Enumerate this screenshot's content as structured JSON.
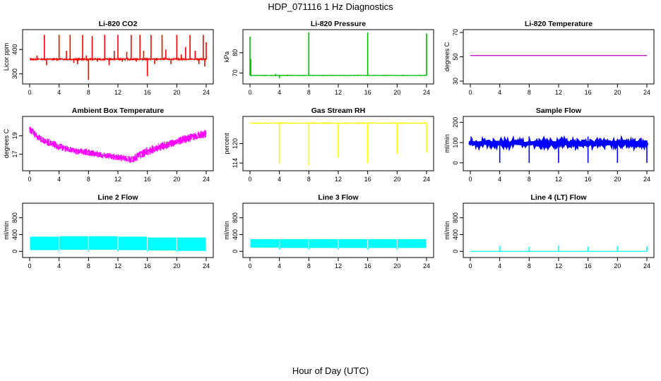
{
  "figure": {
    "title": "HDP_071116  1 Hz Diagnostics",
    "xlabel": "Hour of Day (UTC)"
  },
  "chart_data": [
    {
      "type": "line",
      "title": "Li-820 CO2",
      "ylabel": "Licor ppm",
      "xlim": [
        0,
        24
      ],
      "ylim": [
        270,
        470
      ],
      "xticks": [
        0,
        4,
        8,
        12,
        16,
        20,
        24
      ],
      "xtick_labels": [
        "0",
        "4",
        "8",
        "12",
        "16",
        "20",
        "24"
      ],
      "yticks": [
        300,
        400
      ],
      "ytick_labels": [
        "300",
        "400"
      ],
      "color": "#ff0000",
      "series": [
        {
          "name": "CO2",
          "baseline": 360,
          "noise": 3,
          "spikes": [
            [
              1.0,
              375
            ],
            [
              1.4,
              360
            ],
            [
              2.0,
              460
            ],
            [
              2.3,
              335
            ],
            [
              3.0,
              360
            ],
            [
              4.0,
              460
            ],
            [
              5.0,
              395
            ],
            [
              5.5,
              460
            ],
            [
              6.0,
              345
            ],
            [
              6.5,
              340
            ],
            [
              7.2,
              460
            ],
            [
              7.7,
              375
            ],
            [
              8.0,
              275
            ],
            [
              8.5,
              455
            ],
            [
              9.2,
              350
            ],
            [
              10.2,
              460
            ],
            [
              10.8,
              335
            ],
            [
              11.5,
              395
            ],
            [
              12.0,
              460
            ],
            [
              12.6,
              350
            ],
            [
              13.2,
              390
            ],
            [
              13.8,
              460
            ],
            [
              14.5,
              350
            ],
            [
              15.0,
              460
            ],
            [
              15.5,
              395
            ],
            [
              16.0,
              290
            ],
            [
              16.5,
              460
            ],
            [
              17.0,
              340
            ],
            [
              18.0,
              460
            ],
            [
              18.5,
              400
            ],
            [
              19.2,
              340
            ],
            [
              20.0,
              460
            ],
            [
              20.6,
              380
            ],
            [
              21.2,
              410
            ],
            [
              21.8,
              460
            ],
            [
              22.5,
              395
            ],
            [
              23.0,
              340
            ],
            [
              23.6,
              460
            ],
            [
              23.8,
              330
            ],
            [
              24.0,
              430
            ]
          ]
        }
      ]
    },
    {
      "type": "line",
      "title": "Li-820 Pressure",
      "ylabel": "kPa",
      "xlim": [
        0,
        24
      ],
      "ylim": [
        66,
        90
      ],
      "xticks": [
        0,
        4,
        8,
        12,
        16,
        20,
        24
      ],
      "xtick_labels": [
        "0",
        "4",
        "8",
        "12",
        "16",
        "20",
        "24"
      ],
      "yticks": [
        70,
        80
      ],
      "ytick_labels": [
        "70",
        "80"
      ],
      "color": "#00bb00",
      "series": [
        {
          "name": "Pressure",
          "baseline": 68.8,
          "noise": 0.1,
          "spikes": [
            [
              0.0,
              88
            ],
            [
              0.1,
              77
            ],
            [
              3.5,
              69.6
            ],
            [
              4.0,
              67.5
            ],
            [
              8.0,
              90
            ],
            [
              16.0,
              90
            ],
            [
              24.0,
              89.5
            ]
          ]
        }
      ]
    },
    {
      "type": "line",
      "title": "Li-820 Temperature",
      "ylabel": "degrees C",
      "xlim": [
        0,
        24
      ],
      "ylim": [
        30,
        70
      ],
      "xticks": [
        0,
        4,
        8,
        12,
        16,
        20,
        24
      ],
      "xtick_labels": [
        "0",
        "4",
        "8",
        "12",
        "16",
        "20",
        "24"
      ],
      "yticks": [
        30,
        50,
        70
      ],
      "ytick_labels": [
        "30",
        "50",
        "70"
      ],
      "color": "#bb00bb",
      "series": [
        {
          "name": "Temperature",
          "baseline": 51,
          "noise": 0,
          "spikes": []
        }
      ]
    },
    {
      "type": "line",
      "title": "Ambient Box Temperature",
      "ylabel": "degrees C",
      "xlim": [
        0,
        24
      ],
      "ylim": [
        15.5,
        20.8
      ],
      "xticks": [
        0,
        4,
        8,
        12,
        16,
        20,
        24
      ],
      "xtick_labels": [
        "0",
        "4",
        "8",
        "12",
        "16",
        "20",
        "24"
      ],
      "yticks": [
        17,
        19
      ],
      "ytick_labels": [
        "17",
        "19"
      ],
      "color": "#ff00ff",
      "series": [
        {
          "name": "Ambient Temp",
          "upper": [
            [
              0,
              20.2
            ],
            [
              1,
              19.3
            ],
            [
              2,
              18.8
            ],
            [
              3,
              18.6
            ],
            [
              4,
              18.2
            ],
            [
              6,
              17.7
            ],
            [
              8,
              17.6
            ],
            [
              10,
              17.2
            ],
            [
              12,
              17.0
            ],
            [
              14,
              16.8
            ],
            [
              15,
              17.4
            ],
            [
              16,
              17.8
            ],
            [
              18,
              18.3
            ],
            [
              20,
              18.8
            ],
            [
              22,
              19.3
            ],
            [
              24,
              19.7
            ]
          ],
          "lower": [
            [
              0,
              19.3
            ],
            [
              1,
              18.5
            ],
            [
              2,
              18.0
            ],
            [
              3,
              17.7
            ],
            [
              4,
              17.4
            ],
            [
              6,
              17.0
            ],
            [
              8,
              16.8
            ],
            [
              10,
              16.5
            ],
            [
              12,
              16.3
            ],
            [
              14,
              16.0
            ],
            [
              15,
              16.4
            ],
            [
              16,
              16.8
            ],
            [
              18,
              17.4
            ],
            [
              20,
              17.9
            ],
            [
              22,
              18.4
            ],
            [
              24,
              18.8
            ]
          ]
        }
      ]
    },
    {
      "type": "line",
      "title": "Gas Stream RH",
      "ylabel": "percent",
      "xlim": [
        0,
        24
      ],
      "ylim": [
        112.5,
        127.5
      ],
      "xticks": [
        0,
        4,
        8,
        12,
        16,
        20,
        24
      ],
      "xtick_labels": [
        "0",
        "4",
        "8",
        "12",
        "16",
        "20",
        "24"
      ],
      "yticks": [
        114,
        120
      ],
      "ytick_labels": [
        "114",
        "120"
      ],
      "color": "#ffff00",
      "series": [
        {
          "name": "RH",
          "baseline": 126.3,
          "noise": 0.1,
          "spikes": [
            [
              4.0,
              113.8
            ],
            [
              8.0,
              113.4
            ],
            [
              12.0,
              115.7
            ],
            [
              16.0,
              114.0
            ],
            [
              20.0,
              116.8
            ],
            [
              24.0,
              117.2
            ]
          ]
        }
      ]
    },
    {
      "type": "line",
      "title": "Sample Flow",
      "ylabel": "ml/min",
      "xlim": [
        0,
        24
      ],
      "ylim": [
        -25,
        215
      ],
      "xticks": [
        0,
        4,
        8,
        12,
        16,
        20,
        24
      ],
      "xtick_labels": [
        "0",
        "4",
        "8",
        "12",
        "16",
        "20",
        "24"
      ],
      "yticks": [
        0,
        100,
        200
      ],
      "ytick_labels": [
        "0",
        "100",
        "200"
      ],
      "color": "#0000ff",
      "series": [
        {
          "name": "Sample Flow",
          "baseline": 97,
          "noise": 9,
          "spikes": [
            [
              0.1,
              130
            ],
            [
              4.0,
              0
            ],
            [
              8.0,
              0
            ],
            [
              8.0,
              130
            ],
            [
              12.0,
              0
            ],
            [
              16.0,
              0
            ],
            [
              16.0,
              130
            ],
            [
              20.0,
              0
            ],
            [
              24.0,
              0
            ]
          ]
        }
      ]
    },
    {
      "type": "area",
      "title": "Line 2 Flow",
      "ylabel": "ml/min",
      "xlim": [
        0,
        24
      ],
      "ylim": [
        -80,
        1080
      ],
      "xticks": [
        0,
        4,
        8,
        12,
        16,
        20,
        24
      ],
      "xtick_labels": [
        "0",
        "4",
        "8",
        "12",
        "16",
        "20",
        "24"
      ],
      "yticks": [
        0,
        400,
        800
      ],
      "ytick_labels": [
        "0",
        "400",
        "800"
      ],
      "color": "#00ffff",
      "series": [
        {
          "name": "Line 2 Flow",
          "blocks": [
            [
              0,
              4,
              30,
              350
            ],
            [
              4,
              8,
              40,
              360
            ],
            [
              8,
              12,
              40,
              360
            ],
            [
              12,
              16,
              30,
              350
            ],
            [
              16,
              20,
              20,
              330
            ],
            [
              20,
              24,
              10,
              330
            ]
          ],
          "spikes": [
            [
              4.0,
              0
            ],
            [
              8.0,
              0
            ],
            [
              12.0,
              0
            ],
            [
              16.0,
              0
            ],
            [
              20.0,
              0
            ],
            [
              24.0,
              0
            ]
          ]
        }
      ]
    },
    {
      "type": "area",
      "title": "Line 3 Flow",
      "ylabel": "ml/min",
      "xlim": [
        0,
        24
      ],
      "ylim": [
        -80,
        1080
      ],
      "xticks": [
        0,
        4,
        8,
        12,
        16,
        20,
        24
      ],
      "xtick_labels": [
        "0",
        "4",
        "8",
        "12",
        "16",
        "20",
        "24"
      ],
      "yticks": [
        0,
        400,
        800
      ],
      "ytick_labels": [
        "0",
        "400",
        "800"
      ],
      "color": "#00ffff",
      "series": [
        {
          "name": "Line 3 Flow",
          "blocks": [
            [
              0,
              4,
              90,
              290
            ],
            [
              4,
              8,
              80,
              290
            ],
            [
              8,
              12,
              80,
              290
            ],
            [
              12,
              16,
              80,
              290
            ],
            [
              16,
              20,
              80,
              290
            ],
            [
              20,
              24,
              80,
              290
            ]
          ],
          "spikes": [
            [
              4.0,
              40
            ],
            [
              8.0,
              40
            ],
            [
              12.0,
              40
            ],
            [
              16.0,
              40
            ],
            [
              20.0,
              40
            ]
          ]
        }
      ]
    },
    {
      "type": "line",
      "title": "Line 4 (LT) Flow",
      "ylabel": "ml/min",
      "xlim": [
        0,
        24
      ],
      "ylim": [
        -80,
        1080
      ],
      "xticks": [
        0,
        4,
        8,
        12,
        16,
        20,
        24
      ],
      "xtick_labels": [
        "0",
        "4",
        "8",
        "12",
        "16",
        "20",
        "24"
      ],
      "yticks": [
        0,
        400,
        800
      ],
      "ytick_labels": [
        "0",
        "400",
        "800"
      ],
      "color": "#00ffff",
      "series": [
        {
          "name": "Line 4 Flow",
          "baseline": 0,
          "noise": 0,
          "spikes": [
            [
              4.0,
              130
            ],
            [
              8.0,
              110
            ],
            [
              12.0,
              140
            ],
            [
              16.0,
              110
            ],
            [
              20.0,
              130
            ],
            [
              24.0,
              120
            ]
          ]
        }
      ]
    }
  ]
}
